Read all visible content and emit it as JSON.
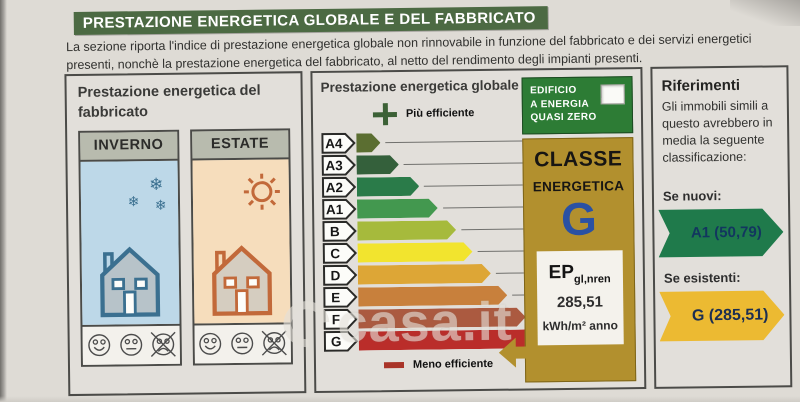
{
  "header": {
    "title": "PRESTAZIONE ENERGETICA GLOBALE E DEL FABBRICATO",
    "description": "La sezione riporta l'indice di prestazione energetica globale non rinnovabile in funzione del fabbricato e dei servizi energetici presenti, nonchè la prestazione energetica del fabbricato, al netto del rendimento degli impianti presenti."
  },
  "building_panel": {
    "title": "Prestazione energetica del fabbricato",
    "columns": [
      {
        "label": "INVERNO",
        "season": "winter",
        "decor": "snowflakes-icon"
      },
      {
        "label": "ESTATE",
        "season": "summer",
        "decor": "sun-icon"
      }
    ],
    "faces": [
      {
        "mood": "happy",
        "crossed": false
      },
      {
        "mood": "neutral",
        "crossed": false
      },
      {
        "mood": "sad",
        "crossed": true
      }
    ]
  },
  "global_panel": {
    "title": "Prestazione energetica globale",
    "more_efficient": "Più efficiente",
    "less_efficient": "Meno efficiente",
    "classes": [
      {
        "label": "A4",
        "color": "#5b6e31",
        "width_pct": 12
      },
      {
        "label": "A3",
        "color": "#34603b",
        "width_pct": 21
      },
      {
        "label": "A2",
        "color": "#2a7b49",
        "width_pct": 31
      },
      {
        "label": "A1",
        "color": "#43984f",
        "width_pct": 40
      },
      {
        "label": "B",
        "color": "#a6ba3c",
        "width_pct": 49
      },
      {
        "label": "C",
        "color": "#f2e42e",
        "width_pct": 57
      },
      {
        "label": "D",
        "color": "#dda636",
        "width_pct": 66
      },
      {
        "label": "E",
        "color": "#c8803c",
        "width_pct": 74
      },
      {
        "label": "F",
        "color": "#ab5a40",
        "width_pct": 83
      },
      {
        "label": "G",
        "color": "#ba2d2a",
        "width_pct": 96
      }
    ],
    "nzeb": {
      "line1": "EDIFICIO",
      "line2": "A ENERGIA",
      "line3": "QUASI ZERO",
      "checkbox_checked": false
    },
    "class_box": {
      "title1": "CLASSE",
      "title2": "ENERGETICA",
      "letter": "G"
    },
    "ep": {
      "label": "EP",
      "sub": "gl,nren",
      "value": "285,51",
      "unit": "kWh/m² anno"
    }
  },
  "references_panel": {
    "title": "Riferimenti",
    "description": "Gli immobili simili a questo avrebbero in media la seguente classificazione:",
    "new_label": "Se nuovi:",
    "new_value": "A1 (50,79)",
    "existing_label": "Se esistenti:",
    "existing_value": "G (285,51)"
  },
  "watermark": {
    "text": "casa.it"
  },
  "colors": {
    "header_green": "#4c6a43",
    "nzeb_green": "#2d7c35",
    "gold": "#b2902e",
    "class_letter_blue": "#2a51a3",
    "ref_new_green": "#1f7a4b",
    "ref_existing_yellow": "#ecba32",
    "winter_bg": "#bdd8e8",
    "summer_bg": "#f6ddbc"
  }
}
